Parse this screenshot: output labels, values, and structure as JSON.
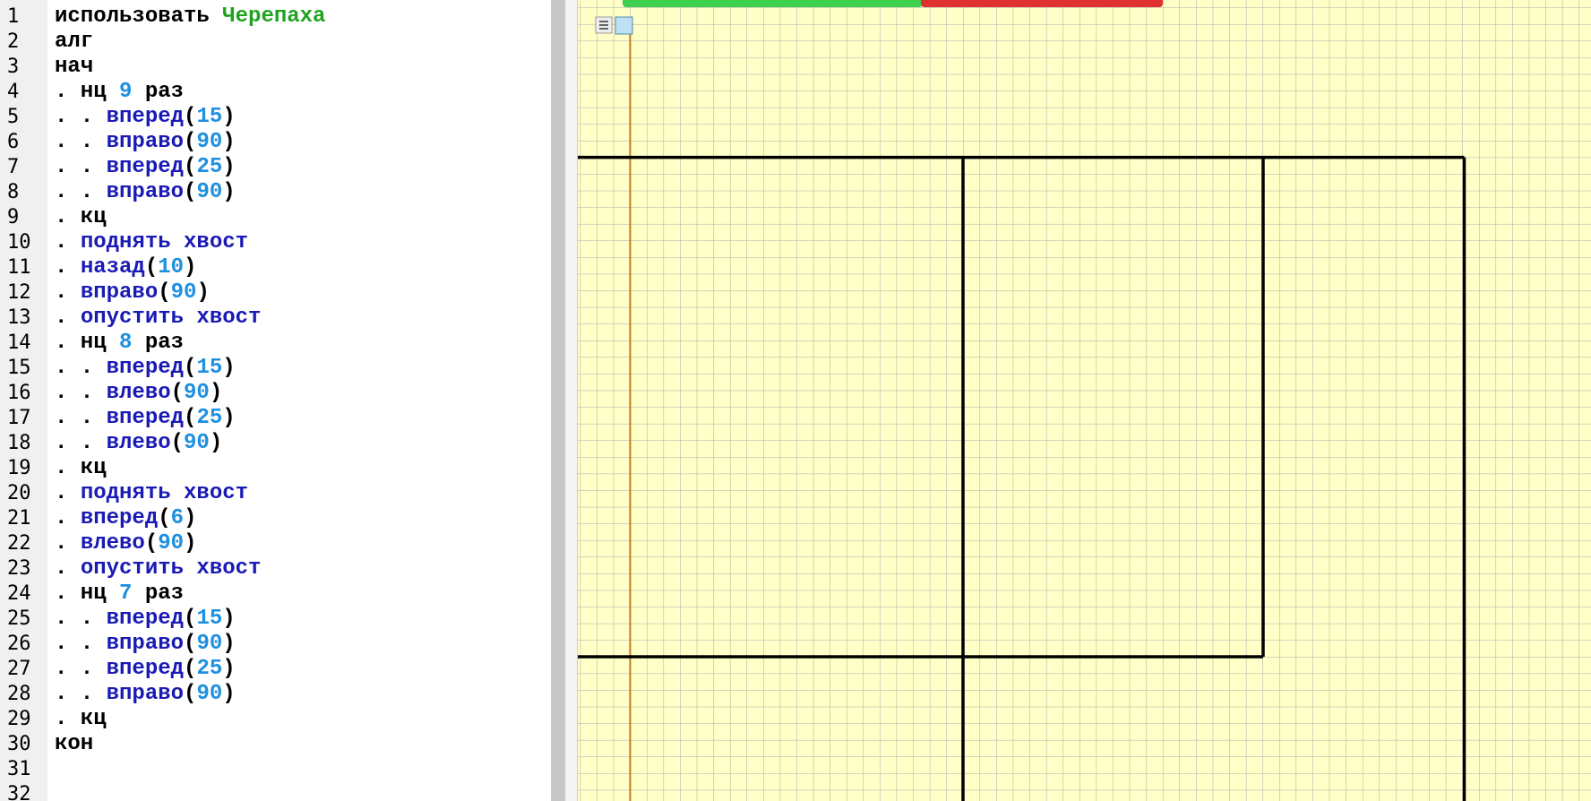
{
  "editor": {
    "lines": [
      {
        "number": "1",
        "tokens": [
          {
            "text": "использовать ",
            "color": "#000000"
          },
          {
            "text": "Черепаха",
            "color": "#1fa31f"
          }
        ]
      },
      {
        "number": "2",
        "tokens": [
          {
            "text": "алг",
            "color": "#000000"
          }
        ]
      },
      {
        "number": "3",
        "tokens": [
          {
            "text": "нач",
            "color": "#000000"
          }
        ]
      },
      {
        "number": "4",
        "tokens": [
          {
            "text": ". нц ",
            "color": "#000000"
          },
          {
            "text": "9",
            "color": "#1e90e0"
          },
          {
            "text": " раз",
            "color": "#000000"
          }
        ]
      },
      {
        "number": "5",
        "tokens": [
          {
            "text": ". . ",
            "color": "#000000"
          },
          {
            "text": "вперед",
            "color": "#1a1ab5"
          },
          {
            "text": "(",
            "color": "#000000"
          },
          {
            "text": "15",
            "color": "#1e90e0"
          },
          {
            "text": ")",
            "color": "#000000"
          }
        ]
      },
      {
        "number": "6",
        "tokens": [
          {
            "text": ". . ",
            "color": "#000000"
          },
          {
            "text": "вправо",
            "color": "#1a1ab5"
          },
          {
            "text": "(",
            "color": "#000000"
          },
          {
            "text": "90",
            "color": "#1e90e0"
          },
          {
            "text": ")",
            "color": "#000000"
          }
        ]
      },
      {
        "number": "7",
        "tokens": [
          {
            "text": ". . ",
            "color": "#000000"
          },
          {
            "text": "вперед",
            "color": "#1a1ab5"
          },
          {
            "text": "(",
            "color": "#000000"
          },
          {
            "text": "25",
            "color": "#1e90e0"
          },
          {
            "text": ")",
            "color": "#000000"
          }
        ]
      },
      {
        "number": "8",
        "tokens": [
          {
            "text": ". . ",
            "color": "#000000"
          },
          {
            "text": "вправо",
            "color": "#1a1ab5"
          },
          {
            "text": "(",
            "color": "#000000"
          },
          {
            "text": "90",
            "color": "#1e90e0"
          },
          {
            "text": ")",
            "color": "#000000"
          }
        ]
      },
      {
        "number": "9",
        "tokens": [
          {
            "text": ". кц",
            "color": "#000000"
          }
        ]
      },
      {
        "number": "10",
        "tokens": [
          {
            "text": ". ",
            "color": "#000000"
          },
          {
            "text": "поднять хвост",
            "color": "#1a1ab5"
          }
        ]
      },
      {
        "number": "11",
        "tokens": [
          {
            "text": ". ",
            "color": "#000000"
          },
          {
            "text": "назад",
            "color": "#1a1ab5"
          },
          {
            "text": "(",
            "color": "#000000"
          },
          {
            "text": "10",
            "color": "#1e90e0"
          },
          {
            "text": ")",
            "color": "#000000"
          }
        ]
      },
      {
        "number": "12",
        "tokens": [
          {
            "text": ". ",
            "color": "#000000"
          },
          {
            "text": "вправо",
            "color": "#1a1ab5"
          },
          {
            "text": "(",
            "color": "#000000"
          },
          {
            "text": "90",
            "color": "#1e90e0"
          },
          {
            "text": ")",
            "color": "#000000"
          }
        ]
      },
      {
        "number": "13",
        "tokens": [
          {
            "text": ". ",
            "color": "#000000"
          },
          {
            "text": "опустить хвост",
            "color": "#1a1ab5"
          }
        ]
      },
      {
        "number": "14",
        "tokens": [
          {
            "text": ". нц ",
            "color": "#000000"
          },
          {
            "text": "8",
            "color": "#1e90e0"
          },
          {
            "text": " раз",
            "color": "#000000"
          }
        ]
      },
      {
        "number": "15",
        "tokens": [
          {
            "text": ". . ",
            "color": "#000000"
          },
          {
            "text": "вперед",
            "color": "#1a1ab5"
          },
          {
            "text": "(",
            "color": "#000000"
          },
          {
            "text": "15",
            "color": "#1e90e0"
          },
          {
            "text": ")",
            "color": "#000000"
          }
        ]
      },
      {
        "number": "16",
        "tokens": [
          {
            "text": ". . ",
            "color": "#000000"
          },
          {
            "text": "влево",
            "color": "#1a1ab5"
          },
          {
            "text": "(",
            "color": "#000000"
          },
          {
            "text": "90",
            "color": "#1e90e0"
          },
          {
            "text": ")",
            "color": "#000000"
          }
        ]
      },
      {
        "number": "17",
        "tokens": [
          {
            "text": ". . ",
            "color": "#000000"
          },
          {
            "text": "вперед",
            "color": "#1a1ab5"
          },
          {
            "text": "(",
            "color": "#000000"
          },
          {
            "text": "25",
            "color": "#1e90e0"
          },
          {
            "text": ")",
            "color": "#000000"
          }
        ]
      },
      {
        "number": "18",
        "tokens": [
          {
            "text": ". . ",
            "color": "#000000"
          },
          {
            "text": "влево",
            "color": "#1a1ab5"
          },
          {
            "text": "(",
            "color": "#000000"
          },
          {
            "text": "90",
            "color": "#1e90e0"
          },
          {
            "text": ")",
            "color": "#000000"
          }
        ]
      },
      {
        "number": "19",
        "tokens": [
          {
            "text": ". кц",
            "color": "#000000"
          }
        ]
      },
      {
        "number": "20",
        "tokens": [
          {
            "text": ". ",
            "color": "#000000"
          },
          {
            "text": "поднять хвост",
            "color": "#1a1ab5"
          }
        ]
      },
      {
        "number": "21",
        "tokens": [
          {
            "text": ". ",
            "color": "#000000"
          },
          {
            "text": "вперед",
            "color": "#1a1ab5"
          },
          {
            "text": "(",
            "color": "#000000"
          },
          {
            "text": "6",
            "color": "#1e90e0"
          },
          {
            "text": ")",
            "color": "#000000"
          }
        ]
      },
      {
        "number": "22",
        "tokens": [
          {
            "text": ". ",
            "color": "#000000"
          },
          {
            "text": "влево",
            "color": "#1a1ab5"
          },
          {
            "text": "(",
            "color": "#000000"
          },
          {
            "text": "90",
            "color": "#1e90e0"
          },
          {
            "text": ")",
            "color": "#000000"
          }
        ]
      },
      {
        "number": "23",
        "tokens": [
          {
            "text": ". ",
            "color": "#000000"
          },
          {
            "text": "опустить хвост",
            "color": "#1a1ab5"
          }
        ]
      },
      {
        "number": "24",
        "tokens": [
          {
            "text": ". нц ",
            "color": "#000000"
          },
          {
            "text": "7",
            "color": "#1e90e0"
          },
          {
            "text": " раз",
            "color": "#000000"
          }
        ]
      },
      {
        "number": "25",
        "tokens": [
          {
            "text": ". . ",
            "color": "#000000"
          },
          {
            "text": "вперед",
            "color": "#1a1ab5"
          },
          {
            "text": "(",
            "color": "#000000"
          },
          {
            "text": "15",
            "color": "#1e90e0"
          },
          {
            "text": ")",
            "color": "#000000"
          }
        ]
      },
      {
        "number": "26",
        "tokens": [
          {
            "text": ". . ",
            "color": "#000000"
          },
          {
            "text": "вправо",
            "color": "#1a1ab5"
          },
          {
            "text": "(",
            "color": "#000000"
          },
          {
            "text": "90",
            "color": "#1e90e0"
          },
          {
            "text": ")",
            "color": "#000000"
          }
        ]
      },
      {
        "number": "27",
        "tokens": [
          {
            "text": ". . ",
            "color": "#000000"
          },
          {
            "text": "вперед",
            "color": "#1a1ab5"
          },
          {
            "text": "(",
            "color": "#000000"
          },
          {
            "text": "25",
            "color": "#1e90e0"
          },
          {
            "text": ")",
            "color": "#000000"
          }
        ]
      },
      {
        "number": "28",
        "tokens": [
          {
            "text": ". . ",
            "color": "#000000"
          },
          {
            "text": "вправо",
            "color": "#1a1ab5"
          },
          {
            "text": "(",
            "color": "#000000"
          },
          {
            "text": "90",
            "color": "#1e90e0"
          },
          {
            "text": ")",
            "color": "#000000"
          }
        ]
      },
      {
        "number": "29",
        "tokens": [
          {
            "text": ". кц",
            "color": "#000000"
          }
        ]
      },
      {
        "number": "30",
        "tokens": [
          {
            "text": "кон",
            "color": "#000000"
          }
        ]
      },
      {
        "number": "31",
        "tokens": []
      },
      {
        "number": "32",
        "tokens": []
      }
    ]
  }
}
